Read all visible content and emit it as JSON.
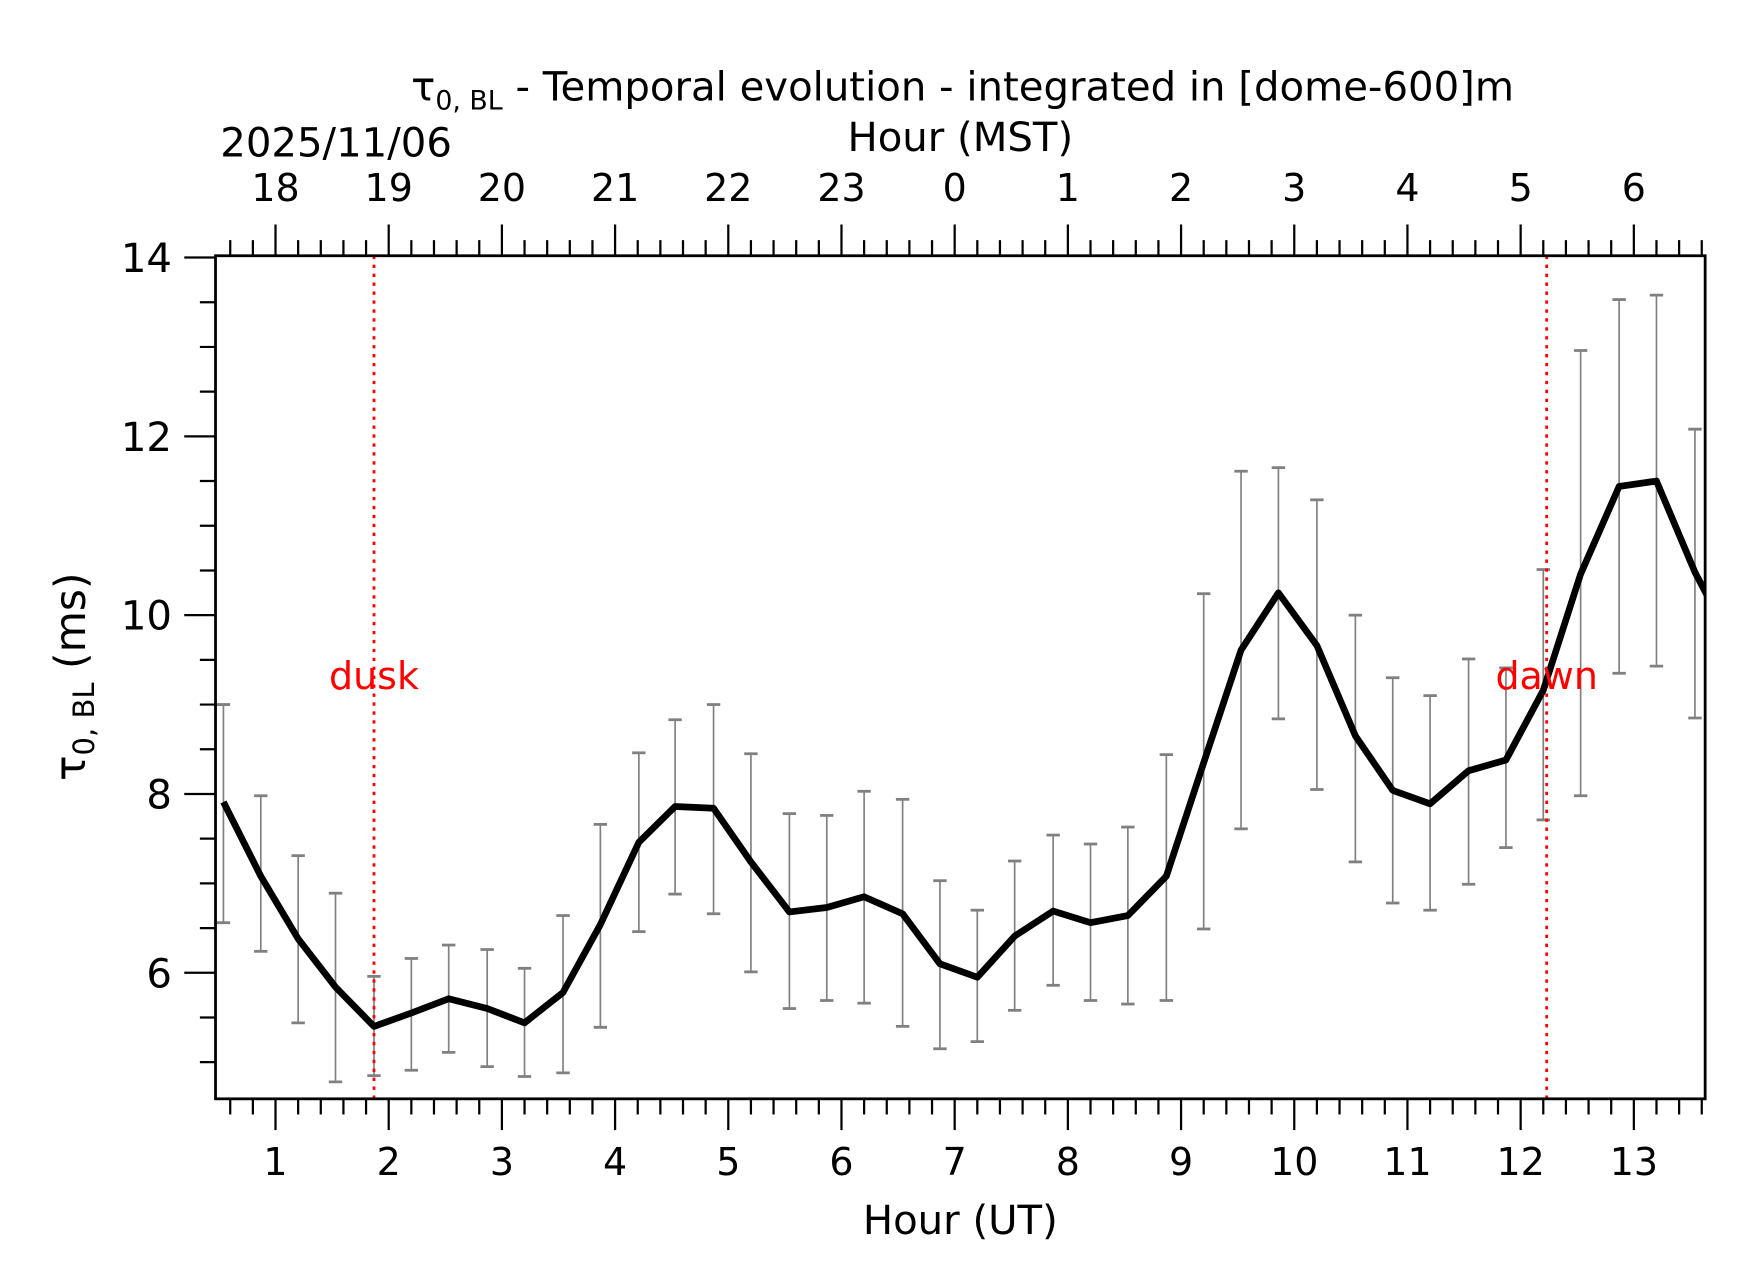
{
  "chart_data": {
    "type": "line",
    "title_symbol": "τ",
    "title_subscript": "0, BL",
    "title_rest": " - Temporal evolution - integrated in [dome-600]m",
    "date_label": "2025/11/06",
    "xlabel": "Hour (UT)",
    "xlabel_top": "Hour (MST)",
    "ylabel_symbol": "τ",
    "ylabel_subscript": "0, BL",
    "ylabel_rest": " (ms)",
    "xlim": [
      0.47,
      13.63
    ],
    "ylim": [
      4.59,
      14.02
    ],
    "x_ticks": [
      1,
      2,
      3,
      4,
      5,
      6,
      7,
      8,
      9,
      10,
      11,
      12,
      13
    ],
    "x_tick_labels": [
      "1",
      "2",
      "3",
      "4",
      "5",
      "6",
      "7",
      "8",
      "9",
      "10",
      "11",
      "12",
      "13"
    ],
    "x_top_tick_labels": [
      "18",
      "19",
      "20",
      "21",
      "22",
      "23",
      "0",
      "1",
      "2",
      "3",
      "4",
      "5",
      "6"
    ],
    "y_ticks": [
      6,
      8,
      10,
      12,
      14
    ],
    "y_tick_labels": [
      "6",
      "8",
      "10",
      "12",
      "14"
    ],
    "grid": false,
    "line_color": "#000000",
    "errorbar_color": "#808080",
    "marker_color": "#ff0000",
    "series": [
      {
        "x": [
          0.54,
          0.87,
          1.2,
          1.53,
          1.87,
          2.2,
          2.53,
          2.87,
          3.2,
          3.54,
          3.87,
          4.21,
          4.53,
          4.87,
          5.2,
          5.54,
          5.87,
          6.2,
          6.54,
          6.87,
          7.2,
          7.53,
          7.87,
          8.2,
          8.53,
          8.87,
          9.2,
          9.53,
          9.86,
          10.2,
          10.54,
          10.87,
          11.2,
          11.54,
          11.87,
          12.2,
          12.53,
          12.87,
          13.2,
          13.54,
          13.87
        ],
        "y": [
          7.91,
          7.08,
          6.38,
          5.84,
          5.4,
          5.55,
          5.71,
          5.6,
          5.44,
          5.78,
          6.54,
          7.46,
          7.86,
          7.84,
          7.24,
          6.68,
          6.73,
          6.85,
          6.66,
          6.1,
          5.95,
          6.41,
          6.69,
          6.56,
          6.64,
          7.08,
          8.35,
          9.61,
          10.25,
          9.66,
          8.65,
          8.04,
          7.89,
          8.26,
          8.38,
          9.16,
          10.46,
          11.44,
          11.5,
          10.48,
          9.68
        ],
        "y_upper": [
          9.0,
          7.98,
          7.31,
          6.89,
          5.96,
          6.16,
          6.31,
          6.26,
          6.05,
          6.64,
          7.66,
          8.46,
          8.83,
          9.0,
          8.45,
          7.78,
          7.76,
          8.03,
          7.94,
          7.03,
          6.7,
          7.25,
          7.54,
          7.44,
          7.63,
          8.44,
          10.24,
          11.61,
          11.65,
          11.29,
          10.0,
          9.3,
          9.1,
          9.51,
          9.41,
          10.51,
          12.96,
          13.53,
          13.58,
          12.08,
          null
        ],
        "y_lower": [
          6.56,
          6.24,
          5.44,
          4.78,
          4.85,
          4.91,
          5.11,
          4.95,
          4.84,
          4.88,
          5.39,
          6.46,
          6.88,
          6.66,
          6.01,
          5.6,
          5.69,
          5.66,
          5.4,
          5.15,
          5.23,
          5.58,
          5.86,
          5.69,
          5.65,
          5.69,
          6.49,
          7.61,
          8.84,
          8.05,
          7.24,
          6.78,
          6.7,
          6.99,
          7.4,
          7.71,
          7.98,
          9.35,
          9.43,
          8.85,
          null
        ]
      }
    ],
    "annotations": [
      {
        "text": "dusk",
        "x": 1.87
      },
      {
        "text": "dawn",
        "x": 12.23
      }
    ]
  }
}
